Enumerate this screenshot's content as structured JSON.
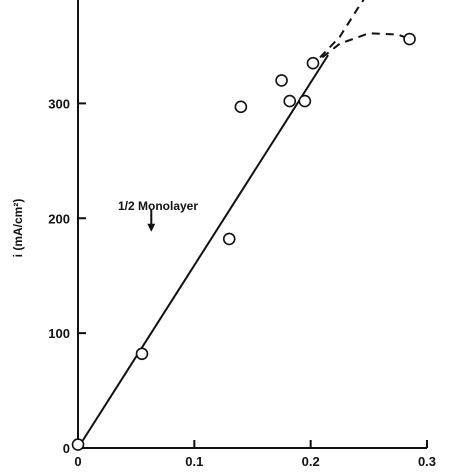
{
  "chart_data": {
    "type": "scatter",
    "title": "",
    "xlabel": "",
    "ylabel": "i (mA/cm²)",
    "xlim": [
      0,
      0.3
    ],
    "ylim": [
      0,
      390
    ],
    "x_ticks": [
      {
        "value": 0,
        "label": "0"
      },
      {
        "value": 0.1,
        "label": "0.1"
      },
      {
        "value": 0.2,
        "label": "0.2"
      },
      {
        "value": 0.3,
        "label": "0.3"
      }
    ],
    "y_ticks": [
      {
        "value": 0,
        "label": "0"
      },
      {
        "value": 100,
        "label": "100"
      },
      {
        "value": 200,
        "label": "200"
      },
      {
        "value": 300,
        "label": "300"
      }
    ],
    "grid": false,
    "points": [
      {
        "x": 0.0,
        "y": 3
      },
      {
        "x": 0.055,
        "y": 82
      },
      {
        "x": 0.13,
        "y": 182
      },
      {
        "x": 0.14,
        "y": 297
      },
      {
        "x": 0.175,
        "y": 320
      },
      {
        "x": 0.182,
        "y": 302
      },
      {
        "x": 0.195,
        "y": 302
      },
      {
        "x": 0.202,
        "y": 335
      },
      {
        "x": 0.285,
        "y": 356
      }
    ],
    "fit_line": {
      "style": "solid",
      "points": [
        {
          "x": 0.0,
          "y": 0
        },
        {
          "x": 0.215,
          "y": 342
        }
      ]
    },
    "dashed_curves": [
      {
        "style": "dashed",
        "points": [
          {
            "x": 0.208,
            "y": 340
          },
          {
            "x": 0.225,
            "y": 358
          },
          {
            "x": 0.24,
            "y": 382
          },
          {
            "x": 0.252,
            "y": 400
          }
        ]
      },
      {
        "style": "dashed",
        "points": [
          {
            "x": 0.21,
            "y": 340
          },
          {
            "x": 0.225,
            "y": 352
          },
          {
            "x": 0.25,
            "y": 361
          },
          {
            "x": 0.275,
            "y": 360
          },
          {
            "x": 0.285,
            "y": 356
          }
        ]
      }
    ],
    "annotation": {
      "text": "1/2 Monolayer",
      "arrow_x": 0.063,
      "arrow_from_y": 208,
      "arrow_to_y": 190
    }
  }
}
